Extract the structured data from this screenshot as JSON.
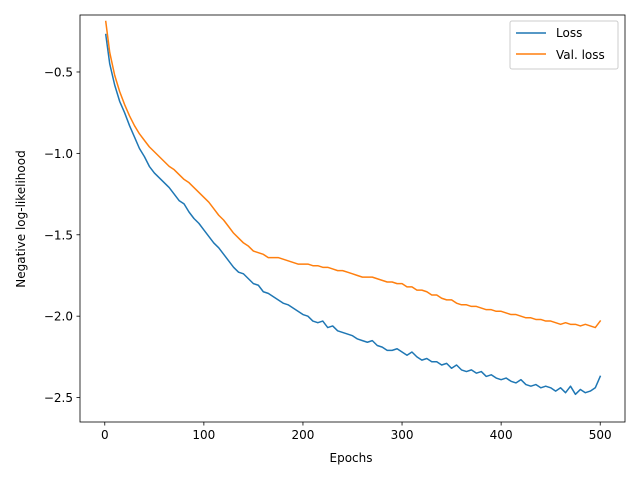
{
  "chart_data": {
    "type": "line",
    "title": "",
    "xlabel": "Epochs",
    "ylabel": "Negative log-likelihood",
    "xlim": [
      -25,
      525
    ],
    "ylim": [
      -2.65,
      -0.15
    ],
    "xticks": [
      0,
      100,
      200,
      300,
      400,
      500
    ],
    "yticks": [
      -2.5,
      -2.0,
      -1.5,
      -1.0,
      -0.5
    ],
    "ytick_labels": [
      "−2.5",
      "−2.0",
      "−1.5",
      "−1.0",
      "−0.5"
    ],
    "grid": false,
    "legend_position": "top-right",
    "series": [
      {
        "name": "Loss",
        "color": "#1f77b4",
        "x": [
          1,
          5,
          10,
          15,
          20,
          25,
          30,
          35,
          40,
          45,
          50,
          55,
          60,
          65,
          70,
          75,
          80,
          85,
          90,
          95,
          100,
          105,
          110,
          115,
          120,
          125,
          130,
          135,
          140,
          145,
          150,
          155,
          160,
          165,
          170,
          175,
          180,
          185,
          190,
          195,
          200,
          205,
          210,
          215,
          220,
          225,
          230,
          235,
          240,
          245,
          250,
          255,
          260,
          265,
          270,
          275,
          280,
          285,
          290,
          295,
          300,
          305,
          310,
          315,
          320,
          325,
          330,
          335,
          340,
          345,
          350,
          355,
          360,
          365,
          370,
          375,
          380,
          385,
          390,
          395,
          400,
          405,
          410,
          415,
          420,
          425,
          430,
          435,
          440,
          445,
          450,
          455,
          460,
          465,
          470,
          475,
          480,
          485,
          490,
          495,
          500
        ],
        "values": [
          -0.27,
          -0.45,
          -0.58,
          -0.68,
          -0.75,
          -0.83,
          -0.9,
          -0.97,
          -1.02,
          -1.08,
          -1.12,
          -1.15,
          -1.18,
          -1.21,
          -1.25,
          -1.29,
          -1.31,
          -1.36,
          -1.4,
          -1.43,
          -1.47,
          -1.51,
          -1.55,
          -1.58,
          -1.62,
          -1.66,
          -1.7,
          -1.73,
          -1.74,
          -1.77,
          -1.8,
          -1.81,
          -1.85,
          -1.86,
          -1.88,
          -1.9,
          -1.92,
          -1.93,
          -1.95,
          -1.97,
          -1.99,
          -2.0,
          -2.03,
          -2.04,
          -2.03,
          -2.07,
          -2.06,
          -2.09,
          -2.1,
          -2.11,
          -2.12,
          -2.14,
          -2.15,
          -2.16,
          -2.15,
          -2.18,
          -2.19,
          -2.21,
          -2.21,
          -2.2,
          -2.22,
          -2.24,
          -2.22,
          -2.25,
          -2.27,
          -2.26,
          -2.28,
          -2.28,
          -2.3,
          -2.29,
          -2.32,
          -2.3,
          -2.33,
          -2.34,
          -2.33,
          -2.35,
          -2.34,
          -2.37,
          -2.36,
          -2.38,
          -2.39,
          -2.38,
          -2.4,
          -2.41,
          -2.39,
          -2.42,
          -2.43,
          -2.42,
          -2.44,
          -2.43,
          -2.44,
          -2.46,
          -2.44,
          -2.47,
          -2.43,
          -2.48,
          -2.45,
          -2.47,
          -2.46,
          -2.44,
          -2.37
        ]
      },
      {
        "name": "Val. loss",
        "color": "#ff7f0e",
        "x": [
          1,
          5,
          10,
          15,
          20,
          25,
          30,
          35,
          40,
          45,
          50,
          55,
          60,
          65,
          70,
          75,
          80,
          85,
          90,
          95,
          100,
          105,
          110,
          115,
          120,
          125,
          130,
          135,
          140,
          145,
          150,
          155,
          160,
          165,
          170,
          175,
          180,
          185,
          190,
          195,
          200,
          205,
          210,
          215,
          220,
          225,
          230,
          235,
          240,
          245,
          250,
          255,
          260,
          265,
          270,
          275,
          280,
          285,
          290,
          295,
          300,
          305,
          310,
          315,
          320,
          325,
          330,
          335,
          340,
          345,
          350,
          355,
          360,
          365,
          370,
          375,
          380,
          385,
          390,
          395,
          400,
          405,
          410,
          415,
          420,
          425,
          430,
          435,
          440,
          445,
          450,
          455,
          460,
          465,
          470,
          475,
          480,
          485,
          490,
          495,
          500
        ],
        "values": [
          -0.19,
          -0.38,
          -0.52,
          -0.62,
          -0.7,
          -0.77,
          -0.83,
          -0.88,
          -0.92,
          -0.96,
          -0.99,
          -1.02,
          -1.05,
          -1.08,
          -1.1,
          -1.13,
          -1.16,
          -1.18,
          -1.21,
          -1.24,
          -1.27,
          -1.3,
          -1.34,
          -1.38,
          -1.41,
          -1.45,
          -1.49,
          -1.52,
          -1.55,
          -1.57,
          -1.6,
          -1.61,
          -1.62,
          -1.64,
          -1.64,
          -1.64,
          -1.65,
          -1.66,
          -1.67,
          -1.68,
          -1.68,
          -1.68,
          -1.69,
          -1.69,
          -1.7,
          -1.7,
          -1.71,
          -1.72,
          -1.72,
          -1.73,
          -1.74,
          -1.75,
          -1.76,
          -1.76,
          -1.76,
          -1.77,
          -1.78,
          -1.79,
          -1.79,
          -1.8,
          -1.8,
          -1.82,
          -1.82,
          -1.84,
          -1.84,
          -1.85,
          -1.87,
          -1.87,
          -1.89,
          -1.9,
          -1.9,
          -1.92,
          -1.93,
          -1.93,
          -1.94,
          -1.94,
          -1.95,
          -1.96,
          -1.96,
          -1.97,
          -1.97,
          -1.98,
          -1.99,
          -1.99,
          -2.0,
          -2.01,
          -2.01,
          -2.02,
          -2.02,
          -2.03,
          -2.03,
          -2.04,
          -2.05,
          -2.04,
          -2.05,
          -2.05,
          -2.06,
          -2.05,
          -2.06,
          -2.07,
          -2.03
        ]
      }
    ]
  }
}
